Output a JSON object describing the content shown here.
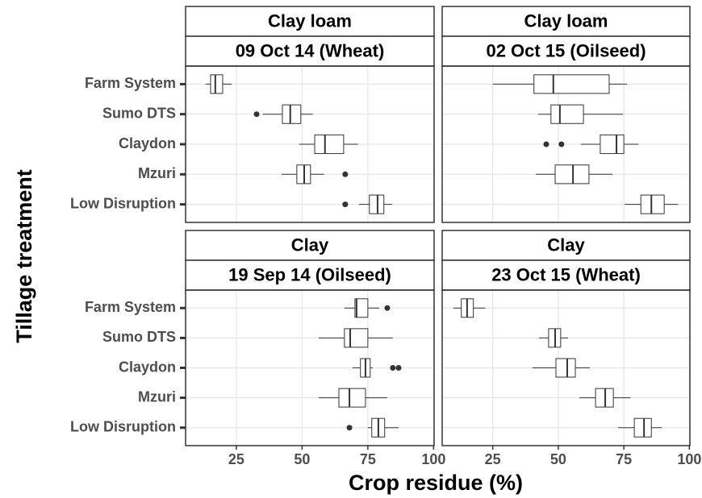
{
  "xlabel": "Crop residue (%)",
  "ylabel": "Tillage treatment",
  "chart_data": [
    {
      "type": "boxplot",
      "strip": [
        "Clay loam",
        "09 Oct 14 (Wheat)"
      ],
      "categories": [
        "Farm System",
        "Sumo DTS",
        "Claydon",
        "Mzuri",
        "Low Disruption"
      ],
      "boxes": [
        {
          "min": 13.3,
          "q1": 15.2,
          "median": 17.0,
          "q3": 19.8,
          "max": 23.2,
          "outliers": []
        },
        {
          "min": 35.1,
          "q1": 42.5,
          "median": 45.5,
          "q3": 49.5,
          "max": 54.1,
          "outliers": [
            32.7
          ]
        },
        {
          "min": 48.9,
          "q1": 54.8,
          "median": 58.7,
          "q3": 65.8,
          "max": 71.3,
          "outliers": []
        },
        {
          "min": 42.2,
          "q1": 48.0,
          "median": 50.8,
          "q3": 53.2,
          "max": 58.4,
          "outliers": [
            66.4
          ]
        },
        {
          "min": 71.6,
          "q1": 75.6,
          "median": 78.7,
          "q3": 81.1,
          "max": 84.2,
          "outliers": [
            66.4
          ]
        }
      ],
      "xlim": [
        5.7,
        100.2
      ],
      "xticks": [
        25,
        50,
        75,
        100
      ],
      "color": "#333333",
      "grid": true
    },
    {
      "type": "boxplot",
      "strip": [
        "Clay loam",
        "02 Oct 15 (Oilseed)"
      ],
      "categories": [
        "Farm System",
        "Sumo DTS",
        "Claydon",
        "Mzuri",
        "Low Disruption"
      ],
      "boxes": [
        {
          "min": 25.0,
          "q1": 40.7,
          "median": 48.1,
          "q3": 69.4,
          "max": 76.2,
          "outliers": []
        },
        {
          "min": 42.3,
          "q1": 47.2,
          "median": 50.6,
          "q3": 59.6,
          "max": 74.7,
          "outliers": []
        },
        {
          "min": 58.6,
          "q1": 66.0,
          "median": 72.2,
          "q3": 75.0,
          "max": 80.6,
          "outliers": [
            45.4,
            51.2
          ]
        },
        {
          "min": 41.4,
          "q1": 48.8,
          "median": 55.6,
          "q3": 61.7,
          "max": 70.7,
          "outliers": []
        },
        {
          "min": 75.3,
          "q1": 81.5,
          "median": 85.5,
          "q3": 90.4,
          "max": 95.7,
          "outliers": []
        }
      ],
      "xlim": [
        5.7,
        100.2
      ],
      "xticks": [
        25,
        50,
        75,
        100
      ],
      "color": "#333333",
      "grid": true
    },
    {
      "type": "boxplot",
      "strip": [
        "Clay",
        "19 Sep 14 (Oilseed)"
      ],
      "categories": [
        "Farm System",
        "Sumo DTS",
        "Claydon",
        "Mzuri",
        "Low Disruption"
      ],
      "boxes": [
        {
          "min": 66.1,
          "q1": 70.1,
          "median": 70.7,
          "q3": 75.0,
          "max": 79.3,
          "outliers": [
            82.4
          ]
        },
        {
          "min": 56.3,
          "q1": 66.1,
          "median": 68.3,
          "q3": 75.0,
          "max": 84.5,
          "outliers": []
        },
        {
          "min": 69.2,
          "q1": 72.2,
          "median": 74.1,
          "q3": 75.9,
          "max": 76.8,
          "outliers": [
            84.5,
            86.7
          ]
        },
        {
          "min": 56.3,
          "q1": 64.0,
          "median": 68.0,
          "q3": 74.1,
          "max": 82.4,
          "outliers": []
        },
        {
          "min": 75.0,
          "q1": 76.5,
          "median": 79.0,
          "q3": 81.4,
          "max": 86.7,
          "outliers": [
            68.0
          ]
        }
      ],
      "xlim": [
        5.7,
        100.2
      ],
      "xticks": [
        25,
        50,
        75,
        100
      ],
      "color": "#333333",
      "grid": true
    },
    {
      "type": "boxplot",
      "strip": [
        "Clay",
        "23 Oct 15 (Wheat)"
      ],
      "categories": [
        "Farm System",
        "Sumo DTS",
        "Claydon",
        "Mzuri",
        "Low Disruption"
      ],
      "boxes": [
        {
          "min": 10.0,
          "q1": 13.0,
          "median": 15.2,
          "q3": 17.6,
          "max": 22.2,
          "outliers": []
        },
        {
          "min": 42.6,
          "q1": 46.3,
          "median": 48.8,
          "q3": 50.9,
          "max": 53.7,
          "outliers": []
        },
        {
          "min": 40.1,
          "q1": 49.1,
          "median": 53.4,
          "q3": 56.5,
          "max": 62.0,
          "outliers": []
        },
        {
          "min": 58.0,
          "q1": 64.2,
          "median": 67.9,
          "q3": 71.0,
          "max": 77.5,
          "outliers": []
        },
        {
          "min": 72.8,
          "q1": 79.0,
          "median": 82.7,
          "q3": 85.5,
          "max": 89.5,
          "outliers": []
        }
      ],
      "xlim": [
        5.7,
        100.2
      ],
      "xticks": [
        25,
        50,
        75,
        100
      ],
      "color": "#333333",
      "grid": true
    }
  ]
}
